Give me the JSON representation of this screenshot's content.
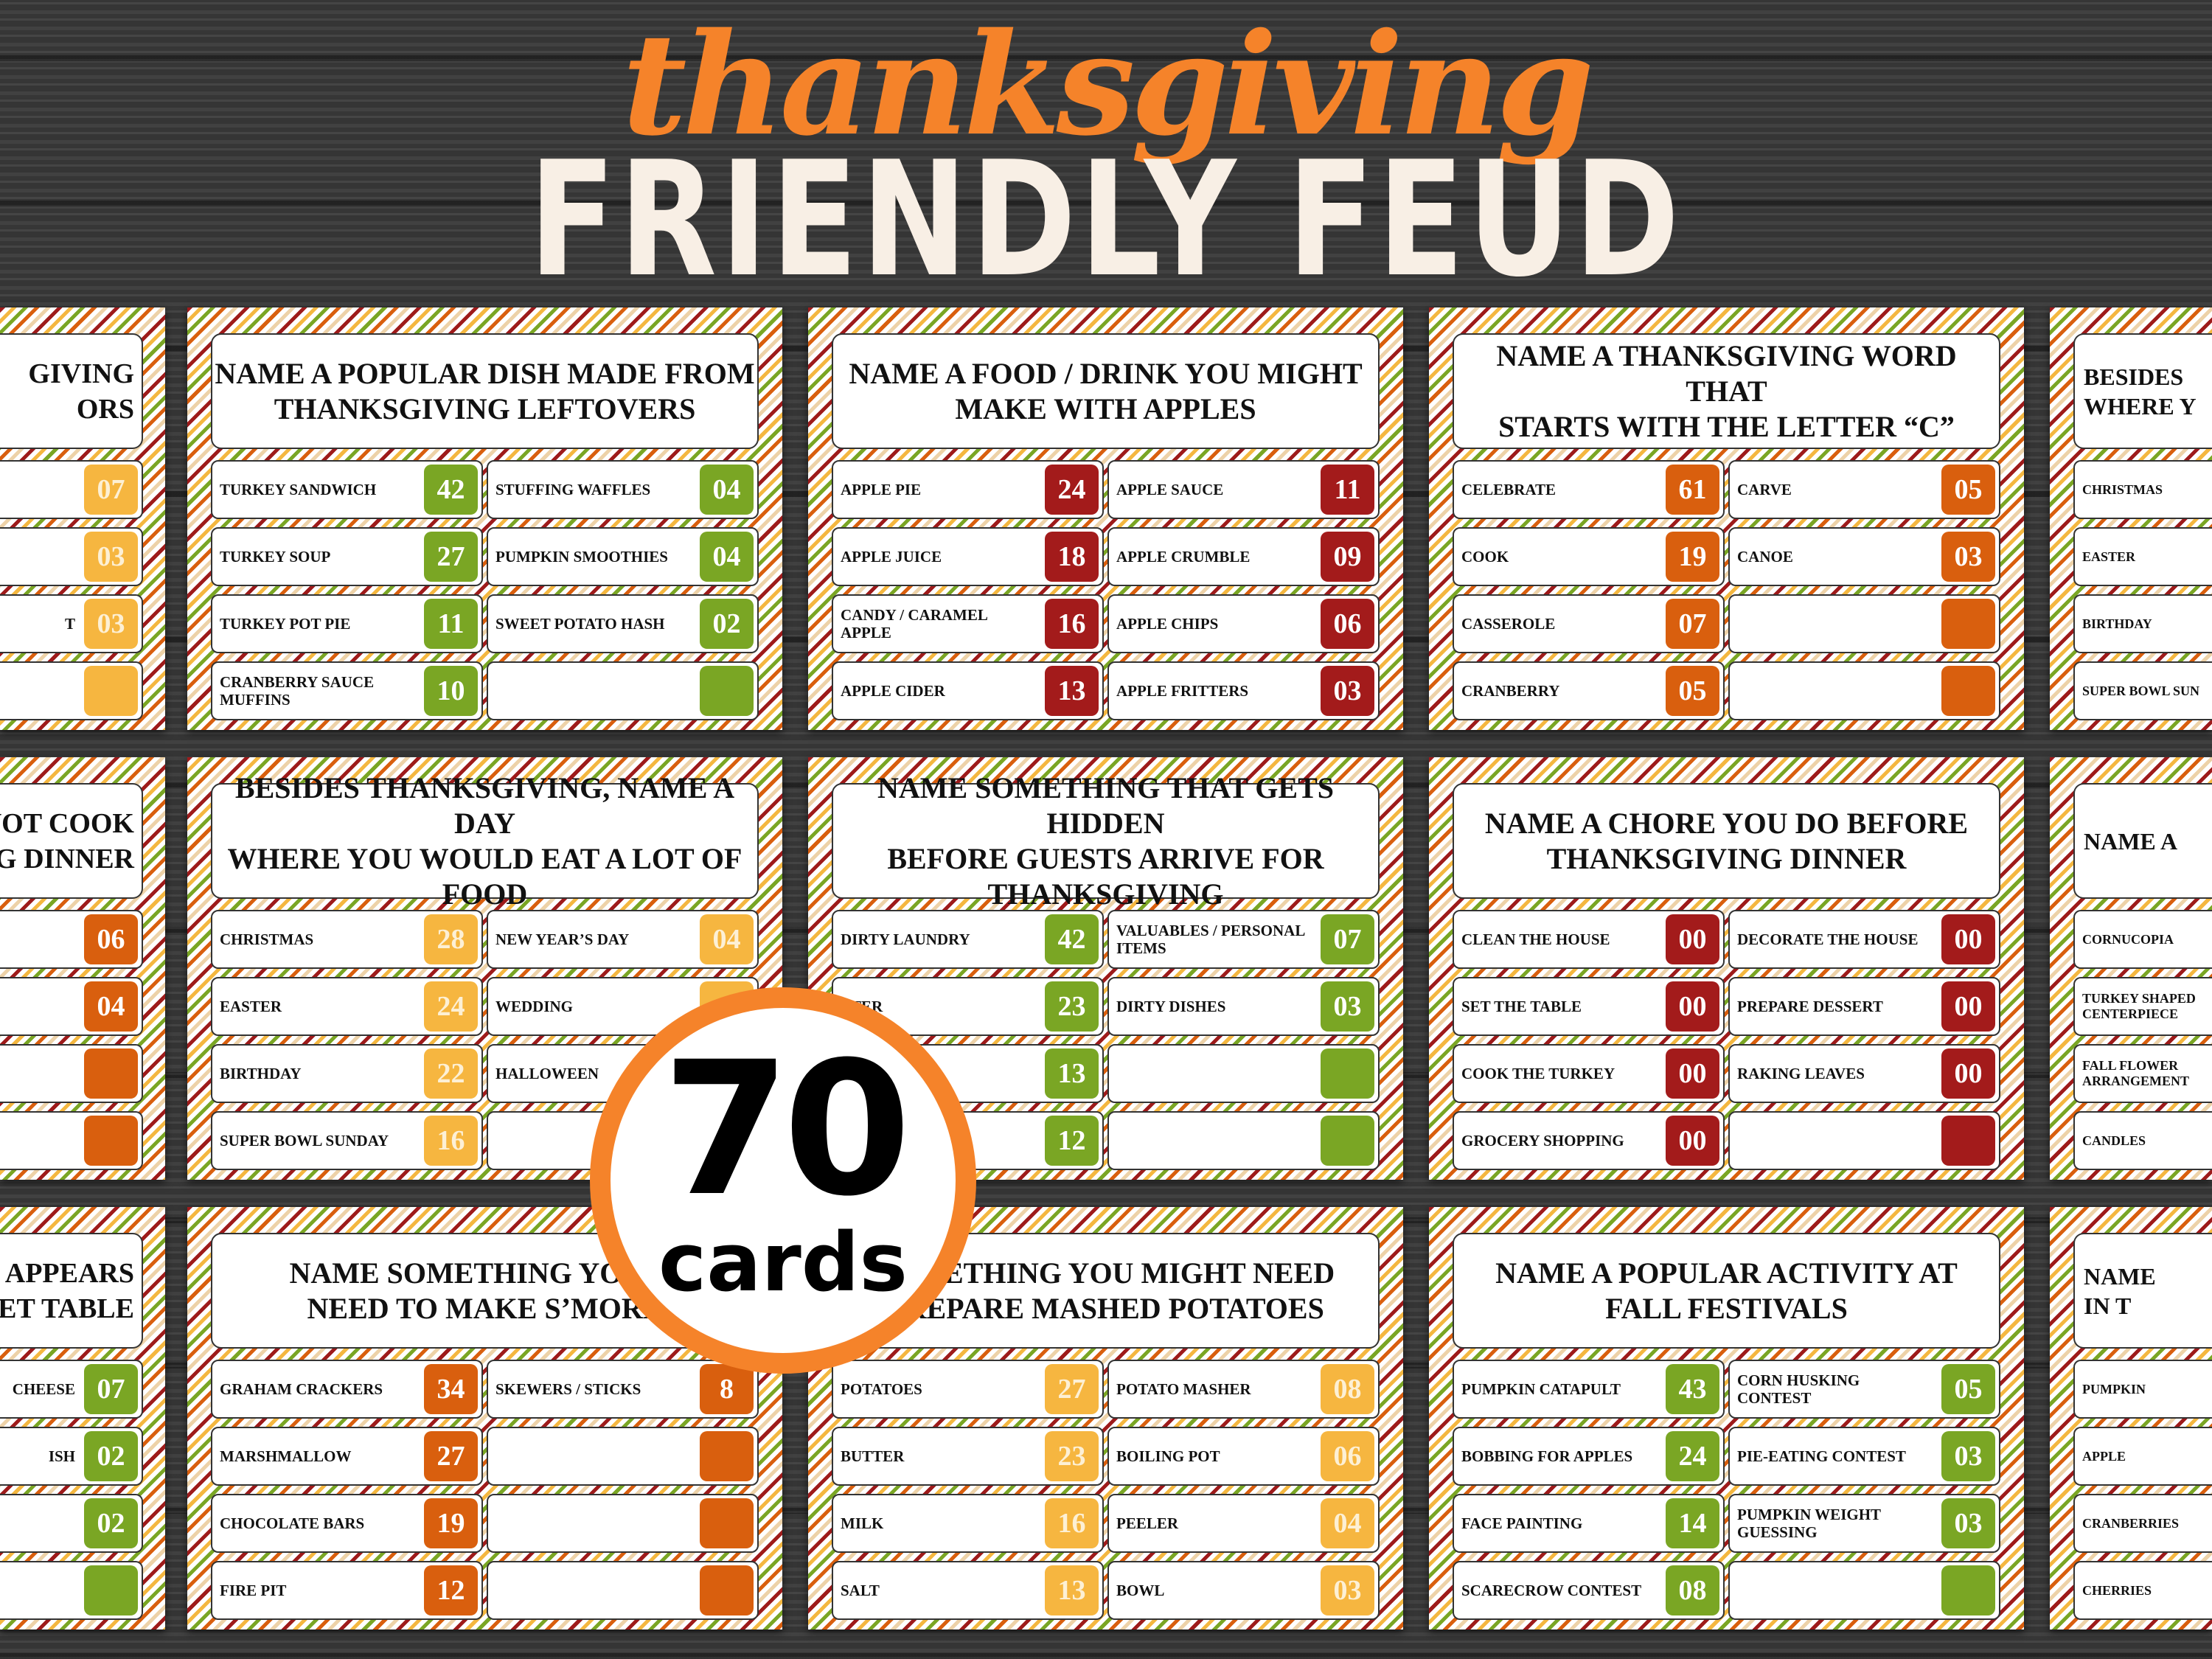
{
  "header": {
    "script_title": "thanksgiving",
    "title": "FRIENDLY FEUD"
  },
  "badge": {
    "count": "70",
    "label": "cards"
  },
  "colors": {
    "green": "#7aa624",
    "red": "#a31b1b",
    "orange": "#d95f0e",
    "yellow": "#f6b640",
    "accent": "#f5832a"
  },
  "cards": [
    {
      "row": 0,
      "col": 0,
      "color": "yellow",
      "question": [
        "GIVING",
        "ORS"
      ],
      "left": [
        [
          "",
          ""
        ],
        [
          "",
          ""
        ],
        [
          "",
          ""
        ],
        [
          "",
          ""
        ]
      ],
      "right": [
        [
          "",
          "07"
        ],
        [
          "",
          "03"
        ],
        [
          "T",
          "03"
        ],
        [
          "",
          ""
        ]
      ]
    },
    {
      "row": 0,
      "col": 1,
      "color": "green",
      "question": [
        "NAME A POPULAR DISH MADE FROM",
        "THANKSGIVING LEFTOVERS"
      ],
      "left": [
        [
          "TURKEY SANDWICH",
          "42"
        ],
        [
          "TURKEY SOUP",
          "27"
        ],
        [
          "TURKEY POT PIE",
          "11"
        ],
        [
          "CRANBERRY SAUCE MUFFINS",
          "10"
        ]
      ],
      "right": [
        [
          "STUFFING WAFFLES",
          "04"
        ],
        [
          "PUMPKIN SMOOTHIES",
          "04"
        ],
        [
          "SWEET POTATO HASH",
          "02"
        ],
        [
          "",
          ""
        ]
      ]
    },
    {
      "row": 0,
      "col": 2,
      "color": "red",
      "question": [
        "NAME A FOOD / DRINK YOU MIGHT",
        "MAKE WITH APPLES"
      ],
      "left": [
        [
          "APPLE PIE",
          "24"
        ],
        [
          "APPLE JUICE",
          "18"
        ],
        [
          "CANDY / CARAMEL APPLE",
          "16"
        ],
        [
          "APPLE CIDER",
          "13"
        ]
      ],
      "right": [
        [
          "APPLE SAUCE",
          "11"
        ],
        [
          "APPLE CRUMBLE",
          "09"
        ],
        [
          "APPLE CHIPS",
          "06"
        ],
        [
          "APPLE FRITTERS",
          "03"
        ]
      ]
    },
    {
      "row": 0,
      "col": 3,
      "color": "orange",
      "question": [
        "NAME A THANKSGIVING WORD THAT",
        "STARTS WITH THE LETTER “C”"
      ],
      "left": [
        [
          "CELEBRATE",
          "61"
        ],
        [
          "COOK",
          "19"
        ],
        [
          "CASSEROLE",
          "07"
        ],
        [
          "CRANBERRY",
          "05"
        ]
      ],
      "right": [
        [
          "CARVE",
          "05"
        ],
        [
          "CANOE",
          "03"
        ],
        [
          "",
          ""
        ],
        [
          "",
          ""
        ]
      ]
    },
    {
      "row": 0,
      "col": 4,
      "color": "yellow",
      "question": [
        "BESIDES",
        "WHERE Y"
      ],
      "left": [
        [
          "CHRISTMAS",
          ""
        ],
        [
          "EASTER",
          ""
        ],
        [
          "BIRTHDAY",
          ""
        ],
        [
          "SUPER BOWL SUN",
          ""
        ]
      ],
      "right": [
        [
          "",
          ""
        ],
        [
          "",
          ""
        ],
        [
          "",
          ""
        ],
        [
          "",
          ""
        ]
      ]
    },
    {
      "row": 1,
      "col": 0,
      "color": "orange",
      "question": [
        "NOT COOK",
        "G DINNER"
      ],
      "left": [
        [
          "",
          ""
        ],
        [
          "",
          ""
        ],
        [
          "",
          ""
        ],
        [
          "",
          ""
        ]
      ],
      "right": [
        [
          "",
          "06"
        ],
        [
          "",
          "04"
        ],
        [
          "",
          ""
        ],
        [
          "",
          ""
        ]
      ]
    },
    {
      "row": 1,
      "col": 1,
      "color": "yellow",
      "question": [
        "BESIDES THANKSGIVING, NAME A DAY",
        "WHERE YOU WOULD EAT A LOT OF FOOD"
      ],
      "left": [
        [
          "CHRISTMAS",
          "28"
        ],
        [
          "EASTER",
          "24"
        ],
        [
          "BIRTHDAY",
          "22"
        ],
        [
          "SUPER BOWL SUNDAY",
          "16"
        ]
      ],
      "right": [
        [
          "NEW YEAR’S DAY",
          "04"
        ],
        [
          "WEDDING",
          ""
        ],
        [
          "HALLOWEEN",
          ""
        ],
        [
          "",
          ""
        ]
      ]
    },
    {
      "row": 1,
      "col": 2,
      "color": "green",
      "question": [
        "NAME SOMETHING THAT GETS HIDDEN",
        "BEFORE GUESTS ARRIVE FOR",
        "THANKSGIVING"
      ],
      "left": [
        [
          "DIRTY LAUNDRY",
          "42"
        ],
        [
          "TTER",
          "23"
        ],
        [
          "",
          "13"
        ],
        [
          "",
          "12"
        ]
      ],
      "right": [
        [
          "VALUABLES / PERSONAL ITEMS",
          "07"
        ],
        [
          "DIRTY DISHES",
          "03"
        ],
        [
          "",
          ""
        ],
        [
          "",
          ""
        ]
      ]
    },
    {
      "row": 1,
      "col": 3,
      "color": "red",
      "question": [
        "NAME A CHORE YOU DO BEFORE",
        "THANKSGIVING DINNER"
      ],
      "left": [
        [
          "CLEAN THE HOUSE",
          "00"
        ],
        [
          "SET THE TABLE",
          "00"
        ],
        [
          "COOK THE TURKEY",
          "00"
        ],
        [
          "GROCERY SHOPPING",
          "00"
        ]
      ],
      "right": [
        [
          "DECORATE THE HOUSE",
          "00"
        ],
        [
          "PREPARE DESSERT",
          "00"
        ],
        [
          "RAKING LEAVES",
          "00"
        ],
        [
          "",
          ""
        ]
      ]
    },
    {
      "row": 1,
      "col": 4,
      "color": "orange",
      "question": [
        "NAME A",
        ""
      ],
      "left": [
        [
          "CORNUCOPIA",
          ""
        ],
        [
          "TURKEY SHAPED CENTERPIECE",
          ""
        ],
        [
          "FALL FLOWER ARRANGEMENT",
          ""
        ],
        [
          "CANDLES",
          ""
        ]
      ],
      "right": [
        [
          "",
          ""
        ],
        [
          "",
          ""
        ],
        [
          "",
          ""
        ],
        [
          "",
          ""
        ]
      ]
    },
    {
      "row": 2,
      "col": 0,
      "color": "green",
      "question": [
        "APPEARS",
        "ET TABLE"
      ],
      "left": [
        [
          "",
          ""
        ],
        [
          "",
          ""
        ],
        [
          "",
          ""
        ],
        [
          "",
          ""
        ]
      ],
      "right": [
        [
          "CHEESE",
          "07"
        ],
        [
          "ISH",
          "02"
        ],
        [
          "",
          "02"
        ],
        [
          "",
          ""
        ]
      ]
    },
    {
      "row": 2,
      "col": 1,
      "color": "orange",
      "question": [
        "NAME SOMETHING YOU W",
        "NEED TO MAKE S’MORE"
      ],
      "left": [
        [
          "GRAHAM CRACKERS",
          "34"
        ],
        [
          "MARSHMALLOW",
          "27"
        ],
        [
          "CHOCOLATE BARS",
          "19"
        ],
        [
          "FIRE PIT",
          "12"
        ]
      ],
      "right": [
        [
          "SKEWERS / STICKS",
          "8"
        ],
        [
          "",
          ""
        ],
        [
          "",
          ""
        ],
        [
          "",
          ""
        ]
      ]
    },
    {
      "row": 2,
      "col": 2,
      "color": "yellow",
      "question": [
        "SOMETHING YOU MIGHT NEED",
        "PREPARE MASHED POTATOES"
      ],
      "left": [
        [
          "POTATOES",
          "27"
        ],
        [
          "BUTTER",
          "23"
        ],
        [
          "MILK",
          "16"
        ],
        [
          "SALT",
          "13"
        ]
      ],
      "right": [
        [
          "POTATO MASHER",
          "08"
        ],
        [
          "BOILING POT",
          "06"
        ],
        [
          "PEELER",
          "04"
        ],
        [
          "BOWL",
          "03"
        ]
      ]
    },
    {
      "row": 2,
      "col": 3,
      "color": "green",
      "question": [
        "NAME A POPULAR ACTIVITY AT",
        "FALL FESTIVALS"
      ],
      "left": [
        [
          "PUMPKIN CATAPULT",
          "43"
        ],
        [
          "BOBBING FOR APPLES",
          "24"
        ],
        [
          "FACE PAINTING",
          "14"
        ],
        [
          "SCARECROW CONTEST",
          "08"
        ]
      ],
      "right": [
        [
          "CORN HUSKING CONTEST",
          "05"
        ],
        [
          "PIE-EATING CONTEST",
          "03"
        ],
        [
          "PUMPKIN WEIGHT GUESSING",
          "03"
        ],
        [
          "",
          ""
        ]
      ]
    },
    {
      "row": 2,
      "col": 4,
      "color": "red",
      "question": [
        "NAME",
        "IN T"
      ],
      "left": [
        [
          "PUMPKIN",
          ""
        ],
        [
          "APPLE",
          ""
        ],
        [
          "CRANBERRIES",
          ""
        ],
        [
          "CHERRIES",
          ""
        ]
      ],
      "right": [
        [
          "",
          ""
        ],
        [
          "",
          ""
        ],
        [
          "",
          ""
        ],
        [
          "",
          ""
        ]
      ]
    }
  ]
}
